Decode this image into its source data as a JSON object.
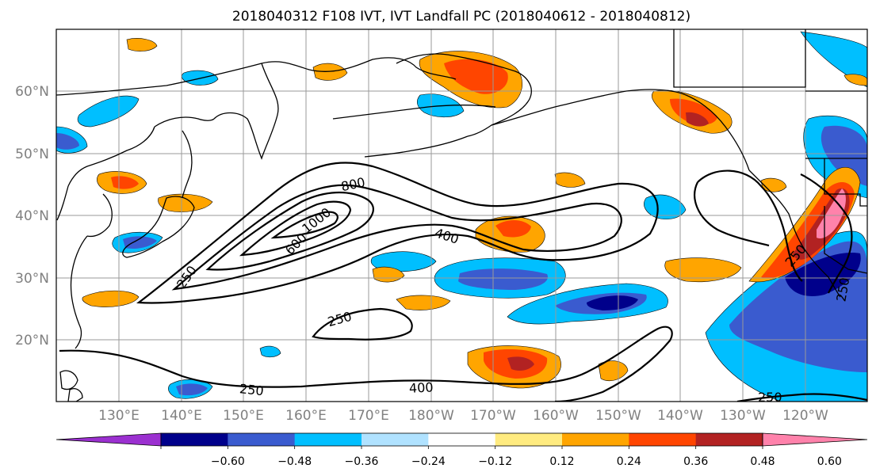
{
  "title": "2018040312 F108 IVT, IVT Landfall PC (2018040612 - 2018040812)",
  "latitude_labels": [
    "60°N",
    "50°N",
    "40°N",
    "30°N",
    "20°N"
  ],
  "longitude_labels": [
    "130°E",
    "140°E",
    "150°E",
    "160°E",
    "170°E",
    "180°W",
    "170°W",
    "160°W",
    "150°W",
    "140°W",
    "130°W",
    "120°W"
  ],
  "colorbar": {
    "colors": [
      "#9b30d0",
      "#00008b",
      "#3a5bcf",
      "#00bfff",
      "#b0e2ff",
      "#ffffff",
      "#ffeb80",
      "#ffa500",
      "#ff4500",
      "#b22222",
      "#ff82ab"
    ],
    "tick_labels": [
      "-0.60",
      "-0.48",
      "-0.36",
      "-0.24",
      "-0.12",
      "0.12",
      "0.24",
      "0.36",
      "0.48",
      "0.60"
    ]
  },
  "contour_labels": [
    "250",
    "400",
    "600",
    "800",
    "1000",
    "250",
    "400",
    "250",
    "250",
    "250",
    "250"
  ],
  "colors": {
    "coast": "#000000",
    "grid": "#9a9a9a",
    "label_gray": "#808080"
  }
}
